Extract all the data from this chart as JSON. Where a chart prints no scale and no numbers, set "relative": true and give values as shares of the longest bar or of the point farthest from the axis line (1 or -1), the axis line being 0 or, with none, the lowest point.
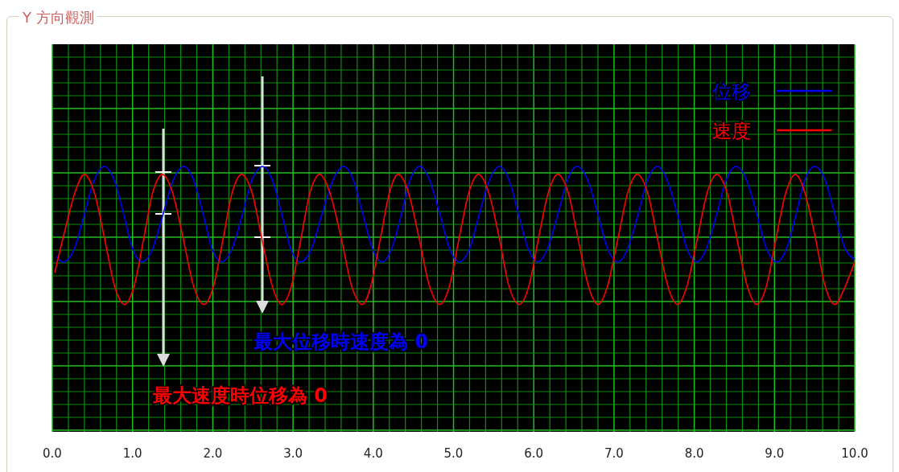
{
  "chart_data": {
    "type": "line",
    "title": "Y 方向觀測",
    "relative": true,
    "grid": true,
    "legend": "top right",
    "xlim": [
      0,
      10
    ],
    "xticks": [
      {
        "value": 0,
        "label": "0.0"
      },
      {
        "value": 0.2,
        "label": null
      },
      {
        "value": 0.4,
        "label": null
      },
      {
        "value": 0.6,
        "label": null
      },
      {
        "value": 0.8,
        "label": null
      },
      {
        "value": 1,
        "label": "1.0"
      },
      {
        "value": 1.2,
        "label": null
      },
      {
        "value": 1.4,
        "label": null
      },
      {
        "value": 1.6,
        "label": null
      },
      {
        "value": 1.8,
        "label": null
      },
      {
        "value": 2,
        "label": "2.0"
      },
      {
        "value": 2.2,
        "label": null
      },
      {
        "value": 2.4,
        "label": null
      },
      {
        "value": 2.6,
        "label": null
      },
      {
        "value": 2.8,
        "label": null
      },
      {
        "value": 3,
        "label": "3.0"
      },
      {
        "value": 3.2,
        "label": null
      },
      {
        "value": 3.4,
        "label": null
      },
      {
        "value": 3.6,
        "label": null
      },
      {
        "value": 3.8,
        "label": null
      },
      {
        "value": 4,
        "label": "4.0"
      },
      {
        "value": 4.2,
        "label": null
      },
      {
        "value": 4.4,
        "label": null
      },
      {
        "value": 4.6,
        "label": null
      },
      {
        "value": 4.8,
        "label": null
      },
      {
        "value": 5,
        "label": "5.0"
      },
      {
        "value": 5.2,
        "label": null
      },
      {
        "value": 5.4,
        "label": null
      },
      {
        "value": 5.6,
        "label": null
      },
      {
        "value": 5.8,
        "label": null
      },
      {
        "value": 6,
        "label": "6.0"
      },
      {
        "value": 6.2,
        "label": null
      },
      {
        "value": 6.4,
        "label": null
      },
      {
        "value": 6.6,
        "label": null
      },
      {
        "value": 6.8,
        "label": null
      },
      {
        "value": 7,
        "label": "7.0"
      },
      {
        "value": 7.2,
        "label": null
      },
      {
        "value": 7.4,
        "label": null
      },
      {
        "value": 7.6,
        "label": null
      },
      {
        "value": 7.8,
        "label": null
      },
      {
        "value": 8,
        "label": "8.0"
      },
      {
        "value": 8.2,
        "label": null
      },
      {
        "value": 8.4,
        "label": null
      },
      {
        "value": 8.6,
        "label": null
      },
      {
        "value": 8.8,
        "label": null
      },
      {
        "value": 9,
        "label": "9.0"
      },
      {
        "value": 9.2,
        "label": null
      },
      {
        "value": 9.4,
        "label": null
      },
      {
        "value": 9.6,
        "label": null
      },
      {
        "value": 9.8,
        "label": null
      },
      {
        "value": 10,
        "label": "10.0"
      }
    ],
    "annotations": [
      "最大位移時速度為 0",
      "最大速度時位移為 0"
    ],
    "series": [
      {
        "name": "位移",
        "color": "#0000ff",
        "x": [
          0.05,
          0.15,
          0.275,
          0.4,
          0.525,
          0.65,
          0.77,
          0.89,
          1.0,
          1.12,
          1.25,
          1.38,
          1.51,
          1.64,
          1.76,
          1.88,
          1.99,
          2.11,
          2.24,
          2.37,
          2.49,
          2.62,
          2.74,
          2.86,
          2.97,
          3.09,
          3.23,
          3.36,
          3.5,
          3.63,
          3.75,
          3.87,
          3.99,
          4.11,
          4.23,
          4.35,
          4.46,
          4.58,
          4.7,
          4.83,
          4.95,
          5.07,
          5.2,
          5.32,
          5.45,
          5.57,
          5.69,
          5.81,
          5.93,
          6.05,
          6.17,
          6.3,
          6.42,
          6.54,
          6.67,
          6.8,
          6.92,
          7.05,
          7.17,
          7.3,
          7.42,
          7.54,
          7.66,
          7.79,
          7.91,
          8.03,
          8.15,
          8.28,
          8.4,
          8.52,
          8.65,
          8.78,
          8.9,
          9.03,
          9.15,
          9.27,
          9.38,
          9.5,
          9.63,
          9.75,
          9.88,
          10.0
        ],
        "values": [
          0.66,
          0.64,
          0.69,
          0.82,
          0.95,
          1,
          0.95,
          0.82,
          0.69,
          0.64,
          0.69,
          0.82,
          0.95,
          1,
          0.95,
          0.82,
          0.69,
          0.64,
          0.69,
          0.82,
          0.95,
          1,
          0.95,
          0.82,
          0.69,
          0.64,
          0.69,
          0.82,
          0.95,
          1,
          0.95,
          0.82,
          0.69,
          0.64,
          0.69,
          0.82,
          0.95,
          1,
          0.95,
          0.82,
          0.69,
          0.64,
          0.69,
          0.82,
          0.95,
          1,
          0.95,
          0.82,
          0.69,
          0.64,
          0.69,
          0.82,
          0.95,
          1,
          0.95,
          0.82,
          0.69,
          0.64,
          0.69,
          0.82,
          0.95,
          1,
          0.95,
          0.82,
          0.69,
          0.64,
          0.69,
          0.82,
          0.95,
          1,
          0.95,
          0.82,
          0.69,
          0.64,
          0.69,
          0.82,
          0.95,
          1,
          0.95,
          0.82,
          0.69,
          0.65
        ]
      },
      {
        "name": "速度",
        "color": "#ff0000",
        "x": [
          0.03,
          0.15,
          0.28,
          0.4,
          0.525,
          0.65,
          0.775,
          0.9,
          1.02,
          1.14,
          1.25,
          1.37,
          1.5,
          1.63,
          1.76,
          1.89,
          2.01,
          2.13,
          2.24,
          2.36,
          2.49,
          2.61,
          2.74,
          2.86,
          2.98,
          3.1,
          3.21,
          3.33,
          3.46,
          3.6,
          3.73,
          3.86,
          3.97,
          4.09,
          4.2,
          4.31,
          4.44,
          4.57,
          4.7,
          4.83,
          4.95,
          5.07,
          5.19,
          5.31,
          5.44,
          5.57,
          5.69,
          5.82,
          5.94,
          6.06,
          6.18,
          6.3,
          6.43,
          6.55,
          6.68,
          6.8,
          6.92,
          7.05,
          7.17,
          7.29,
          7.42,
          7.54,
          7.67,
          7.79,
          7.91,
          8.04,
          8.16,
          8.28,
          8.41,
          8.53,
          8.66,
          8.78,
          8.9,
          9.02,
          9.14,
          9.26,
          9.38,
          9.51,
          9.63,
          9.75,
          9.87,
          10.0
        ],
        "values": [
          0.6,
          0.75,
          0.9,
          0.97,
          0.9,
          0.73,
          0.55,
          0.48,
          0.55,
          0.73,
          0.9,
          0.97,
          0.9,
          0.73,
          0.55,
          0.48,
          0.55,
          0.73,
          0.9,
          0.97,
          0.9,
          0.73,
          0.55,
          0.48,
          0.55,
          0.73,
          0.9,
          0.97,
          0.9,
          0.73,
          0.55,
          0.48,
          0.55,
          0.73,
          0.9,
          0.97,
          0.9,
          0.73,
          0.55,
          0.48,
          0.55,
          0.73,
          0.9,
          0.97,
          0.9,
          0.73,
          0.55,
          0.48,
          0.55,
          0.73,
          0.9,
          0.97,
          0.9,
          0.73,
          0.55,
          0.48,
          0.55,
          0.73,
          0.9,
          0.97,
          0.9,
          0.73,
          0.55,
          0.48,
          0.55,
          0.73,
          0.9,
          0.97,
          0.9,
          0.73,
          0.55,
          0.48,
          0.55,
          0.73,
          0.9,
          0.97,
          0.9,
          0.73,
          0.55,
          0.48,
          0.54,
          0.64
        ]
      }
    ]
  }
}
